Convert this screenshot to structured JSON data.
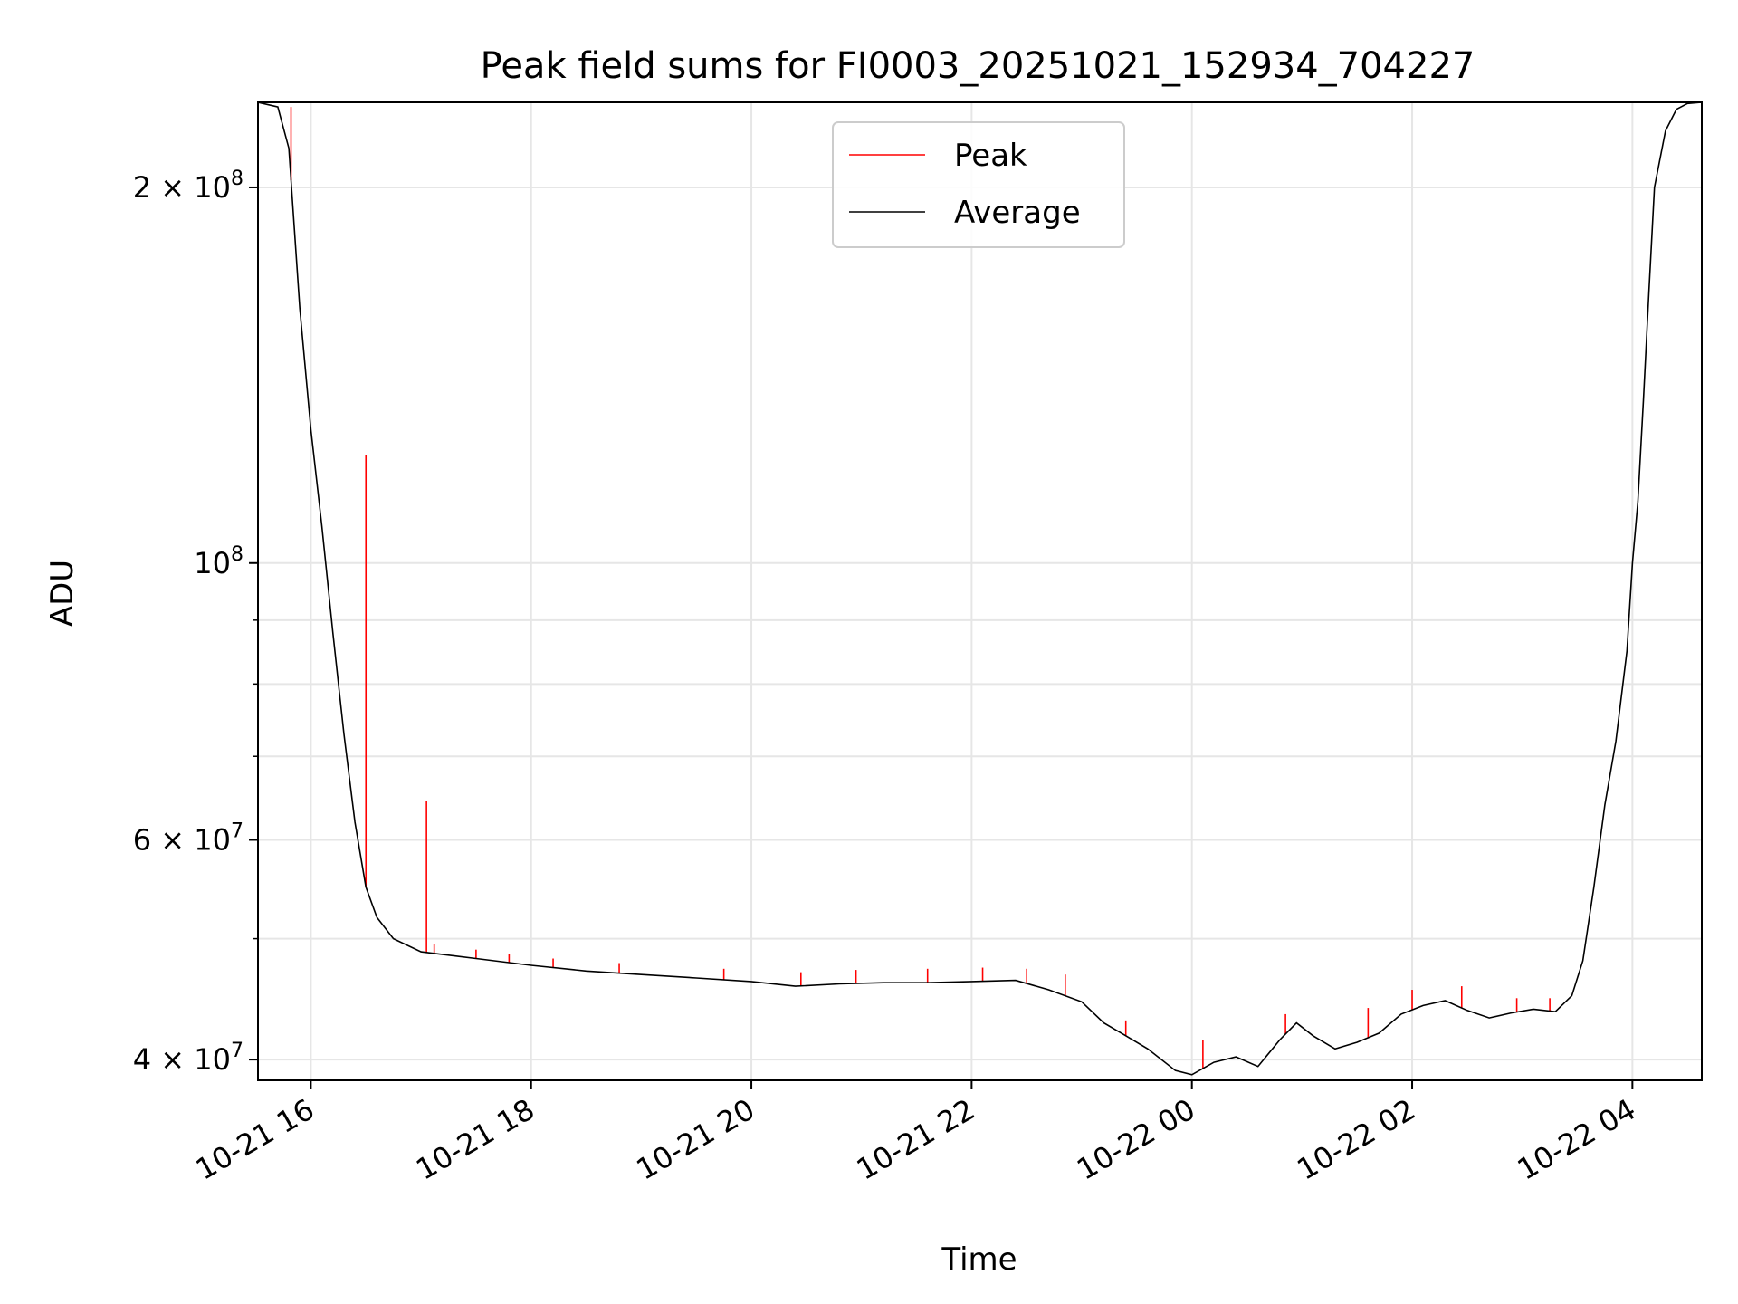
{
  "chart_data": {
    "type": "line",
    "title": "Peak field sums for FI0003_20251021_152934_704227",
    "xlabel": "Time",
    "ylabel": "ADU",
    "yscale": "log",
    "grid": true,
    "legend_position": "top-center",
    "xlim_hours": [
      15.52,
      28.63
    ],
    "ylim": [
      38500000,
      234000000
    ],
    "x_ticks": [
      {
        "label": "10-21 16",
        "hour": 16
      },
      {
        "label": "10-21 18",
        "hour": 18
      },
      {
        "label": "10-21 20",
        "hour": 20
      },
      {
        "label": "10-21 22",
        "hour": 22
      },
      {
        "label": "10-22 00",
        "hour": 24
      },
      {
        "label": "10-22 02",
        "hour": 26
      },
      {
        "label": "10-22 04",
        "hour": 28
      }
    ],
    "y_ticks": [
      {
        "mantissa": "2 × 10",
        "exp": "8",
        "value": 200000000
      },
      {
        "mantissa": "10",
        "exp": "8",
        "value": 100000000
      },
      {
        "mantissa": "6 × 10",
        "exp": "7",
        "value": 60000000
      },
      {
        "mantissa": "4 × 10",
        "exp": "7",
        "value": 40000000
      }
    ],
    "y_minor_ticks": [
      50000000,
      70000000,
      80000000,
      90000000
    ],
    "series": [
      {
        "name": "Average",
        "color": "#000000",
        "points": [
          [
            15.52,
            234000000
          ],
          [
            15.7,
            232000000
          ],
          [
            15.8,
            215000000
          ],
          [
            15.9,
            160000000
          ],
          [
            16.0,
            128000000
          ],
          [
            16.1,
            107000000
          ],
          [
            16.2,
            88000000
          ],
          [
            16.3,
            73000000
          ],
          [
            16.4,
            62000000
          ],
          [
            16.5,
            55000000
          ],
          [
            16.6,
            52000000
          ],
          [
            16.75,
            50000000
          ],
          [
            17.0,
            48800000
          ],
          [
            17.5,
            48200000
          ],
          [
            18.0,
            47600000
          ],
          [
            18.5,
            47100000
          ],
          [
            19.0,
            46800000
          ],
          [
            19.5,
            46500000
          ],
          [
            20.0,
            46200000
          ],
          [
            20.4,
            45800000
          ],
          [
            20.8,
            46000000
          ],
          [
            21.2,
            46100000
          ],
          [
            21.6,
            46100000
          ],
          [
            22.0,
            46200000
          ],
          [
            22.4,
            46300000
          ],
          [
            22.7,
            45500000
          ],
          [
            23.0,
            44500000
          ],
          [
            23.2,
            42800000
          ],
          [
            23.4,
            41800000
          ],
          [
            23.6,
            40800000
          ],
          [
            23.85,
            39200000
          ],
          [
            24.0,
            38900000
          ],
          [
            24.2,
            39800000
          ],
          [
            24.4,
            40200000
          ],
          [
            24.6,
            39500000
          ],
          [
            24.8,
            41500000
          ],
          [
            24.95,
            42800000
          ],
          [
            25.1,
            41800000
          ],
          [
            25.3,
            40800000
          ],
          [
            25.5,
            41300000
          ],
          [
            25.7,
            42000000
          ],
          [
            25.9,
            43500000
          ],
          [
            26.1,
            44200000
          ],
          [
            26.3,
            44600000
          ],
          [
            26.5,
            43800000
          ],
          [
            26.7,
            43200000
          ],
          [
            26.9,
            43600000
          ],
          [
            27.1,
            43900000
          ],
          [
            27.3,
            43700000
          ],
          [
            27.45,
            45000000
          ],
          [
            27.55,
            48000000
          ],
          [
            27.65,
            55000000
          ],
          [
            27.75,
            64000000
          ],
          [
            27.85,
            72000000
          ],
          [
            27.95,
            85000000
          ],
          [
            28.0,
            100000000
          ],
          [
            28.05,
            112000000
          ],
          [
            28.1,
            135000000
          ],
          [
            28.15,
            165000000
          ],
          [
            28.2,
            200000000
          ],
          [
            28.3,
            222000000
          ],
          [
            28.4,
            231000000
          ],
          [
            28.5,
            233500000
          ],
          [
            28.63,
            234000000
          ]
        ]
      },
      {
        "name": "Peak",
        "color": "#ff0000",
        "spikes": [
          [
            15.82,
            232000000
          ],
          [
            16.5,
            122000000
          ],
          [
            17.05,
            64500000
          ],
          [
            17.12,
            49500000
          ],
          [
            17.5,
            49000000
          ],
          [
            17.8,
            48600000
          ],
          [
            18.2,
            48200000
          ],
          [
            18.8,
            47800000
          ],
          [
            19.75,
            47300000
          ],
          [
            20.45,
            47000000
          ],
          [
            20.95,
            47200000
          ],
          [
            21.6,
            47300000
          ],
          [
            22.1,
            47400000
          ],
          [
            22.5,
            47300000
          ],
          [
            22.85,
            46800000
          ],
          [
            23.4,
            43000000
          ],
          [
            24.1,
            41500000
          ],
          [
            24.85,
            43500000
          ],
          [
            25.6,
            44000000
          ],
          [
            26.0,
            45500000
          ],
          [
            26.45,
            45800000
          ],
          [
            26.95,
            44800000
          ],
          [
            27.25,
            44800000
          ]
        ]
      }
    ]
  }
}
